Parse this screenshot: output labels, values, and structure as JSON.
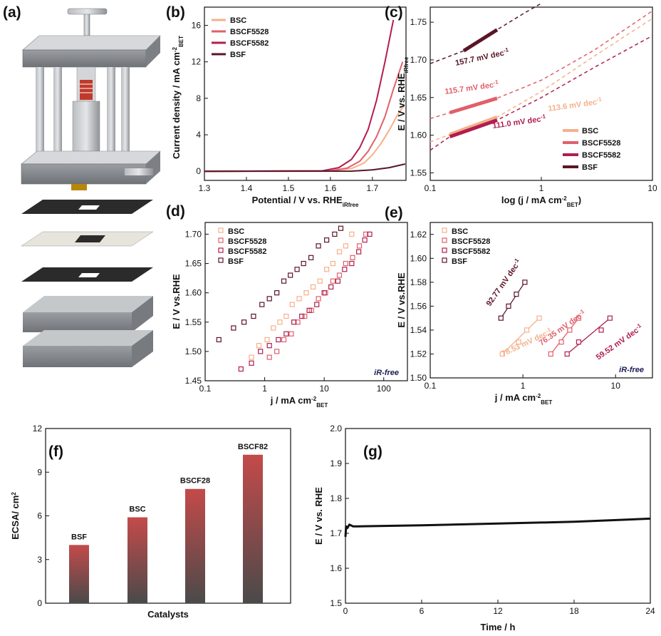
{
  "colors": {
    "BSC": "#f5b08a",
    "BSCF5528": "#e0606a",
    "BSCF5582": "#b01e4e",
    "BSF": "#5a1526"
  },
  "chart_data": [
    {
      "panel": "(a)",
      "type": "other",
      "content": "schematic of press-type electrochemical test cell (exploded view)"
    },
    {
      "panel": "(b)",
      "type": "line",
      "xlabel": "Potential / V vs. RHE",
      "xlabel_sub": "iRfree",
      "ylabel": "Current density / mA cm",
      "ylabel_sup": "-2",
      "ylabel_sub": "BET",
      "xlim": [
        1.3,
        1.78
      ],
      "ylim": [
        -1,
        18
      ],
      "xticks": [
        "1.3",
        "1.4",
        "1.5",
        "1.6",
        "1.7"
      ],
      "yticks": [
        "0",
        "4",
        "8",
        "12",
        "16"
      ],
      "legend": [
        "BSC",
        "BSCF5528",
        "BSCF5582",
        "BSF"
      ],
      "series": [
        {
          "name": "BSC",
          "x": [
            1.3,
            1.6,
            1.65,
            1.68,
            1.7,
            1.72,
            1.74,
            1.76,
            1.775
          ],
          "y": [
            0,
            0.05,
            0.3,
            0.9,
            1.8,
            3.0,
            4.5,
            6.2,
            7.2
          ]
        },
        {
          "name": "BSCF5528",
          "x": [
            1.3,
            1.6,
            1.64,
            1.67,
            1.69,
            1.71,
            1.73,
            1.75,
            1.772
          ],
          "y": [
            0,
            0.05,
            0.35,
            1.1,
            2.2,
            3.8,
            6.0,
            9.0,
            12.0
          ]
        },
        {
          "name": "BSCF5582",
          "x": [
            1.3,
            1.58,
            1.62,
            1.65,
            1.67,
            1.69,
            1.71,
            1.73,
            1.75
          ],
          "y": [
            0,
            0.05,
            0.4,
            1.3,
            2.6,
            4.6,
            7.8,
            12.0,
            16.6
          ]
        },
        {
          "name": "BSF",
          "x": [
            1.3,
            1.65,
            1.7,
            1.74,
            1.778
          ],
          "y": [
            0,
            0.02,
            0.15,
            0.4,
            0.8
          ]
        }
      ]
    },
    {
      "panel": "(c)",
      "type": "line",
      "xlabel": "log (j / mA cm",
      "xlabel_sup": "-2",
      "xlabel_sub": "BET",
      "xlabel_end": ")",
      "ylabel": "E / V vs. RHE",
      "ylabel_sub": "iRfree",
      "xscale": "log",
      "xlim": [
        0.1,
        10
      ],
      "ylim": [
        1.54,
        1.77
      ],
      "xticks": [
        "0.1",
        "1",
        "10"
      ],
      "yticks": [
        "1.55",
        "1.60",
        "1.65",
        "1.70",
        "1.75"
      ],
      "legend": [
        "BSC",
        "BSCF5528",
        "BSCF5582",
        "BSF"
      ],
      "series": [
        {
          "name": "BSC",
          "tafel": "113.6 mV dec",
          "x": [
            0.1,
            0.15,
            0.4,
            1,
            3,
            10
          ],
          "y": [
            1.591,
            1.601,
            1.624,
            1.658,
            1.705,
            1.755
          ]
        },
        {
          "name": "BSCF5528",
          "tafel": "115.7 mV dec",
          "x": [
            0.1,
            0.4,
            1,
            3,
            10
          ],
          "y": [
            1.622,
            1.649,
            1.673,
            1.713,
            1.765
          ]
        },
        {
          "name": "BSCF5582",
          "tafel": "111.0 mV dec",
          "x": [
            0.1,
            0.15,
            0.4,
            1,
            3,
            10
          ],
          "y": [
            1.58,
            1.598,
            1.62,
            1.65,
            1.69,
            1.732
          ]
        },
        {
          "name": "BSF",
          "tafel": "157.7 mV dec",
          "x": [
            0.1,
            0.2,
            0.4,
            0.7,
            1
          ],
          "y": [
            1.695,
            1.712,
            1.74,
            1.762,
            1.775
          ]
        }
      ],
      "annotations": [
        "157.7 mV dec",
        "115.7 mV dec",
        "113.6 mV dec",
        "111.0 mV dec"
      ],
      "annotation_sup": "-1"
    },
    {
      "panel": "(d)",
      "type": "scatter",
      "xlabel": "j / mA cm",
      "xlabel_sup": "-2",
      "xlabel_sub": "BET",
      "ylabel": "E / V vs.RHE",
      "xscale": "log",
      "xlim": [
        0.1,
        250
      ],
      "ylim": [
        1.45,
        1.72
      ],
      "xticks": [
        "0.1",
        "1",
        "10",
        "100"
      ],
      "yticks": [
        "1.45",
        "1.50",
        "1.55",
        "1.60",
        "1.65",
        "1.70"
      ],
      "legend": [
        "BSC",
        "BSCF5528",
        "BSCF5582",
        "BSF"
      ],
      "corner_text": "iR-free",
      "series": [
        {
          "name": "BSC",
          "x": [
            0.6,
            0.8,
            1.1,
            1.4,
            1.8,
            2.3,
            2.9,
            3.8,
            5,
            6.5,
            8.5,
            11,
            14,
            18,
            23,
            29
          ],
          "y": [
            1.49,
            1.51,
            1.52,
            1.54,
            1.55,
            1.56,
            1.58,
            1.59,
            1.6,
            1.61,
            1.62,
            1.64,
            1.65,
            1.67,
            1.68,
            1.7
          ]
        },
        {
          "name": "BSCF5528",
          "x": [
            1.2,
            1.6,
            2.1,
            2.8,
            3.6,
            4.7,
            6.1,
            8,
            10.5,
            14,
            18,
            23,
            30,
            39,
            50
          ],
          "y": [
            1.49,
            1.5,
            1.52,
            1.53,
            1.55,
            1.56,
            1.57,
            1.59,
            1.6,
            1.62,
            1.63,
            1.65,
            1.66,
            1.68,
            1.7
          ]
        },
        {
          "name": "BSCF5582",
          "x": [
            0.4,
            0.6,
            0.85,
            1.2,
            1.7,
            2.3,
            3.1,
            4.2,
            5.6,
            7.5,
            10,
            13,
            17,
            22,
            29,
            38,
            48,
            58
          ],
          "y": [
            1.47,
            1.48,
            1.5,
            1.51,
            1.52,
            1.53,
            1.55,
            1.56,
            1.57,
            1.58,
            1.6,
            1.61,
            1.62,
            1.64,
            1.65,
            1.67,
            1.69,
            1.7
          ]
        },
        {
          "name": "BSF",
          "x": [
            0.17,
            0.3,
            0.45,
            0.65,
            0.9,
            1.2,
            1.6,
            2.1,
            2.7,
            3.5,
            4.5,
            6,
            8,
            11,
            15,
            19
          ],
          "y": [
            1.52,
            1.54,
            1.55,
            1.56,
            1.58,
            1.59,
            1.6,
            1.62,
            1.63,
            1.64,
            1.65,
            1.66,
            1.68,
            1.69,
            1.7,
            1.71
          ]
        }
      ]
    },
    {
      "panel": "(e)",
      "type": "scatter",
      "xlabel": "j / mA cm",
      "xlabel_sup": "-2",
      "xlabel_sub": "BET",
      "ylabel": "E / V vs.RHE",
      "xscale": "log",
      "xlim": [
        0.1,
        25
      ],
      "ylim": [
        1.5,
        1.63
      ],
      "xticks": [
        "0.1",
        "1",
        "10"
      ],
      "yticks": [
        "1.50",
        "1.52",
        "1.54",
        "1.56",
        "1.58",
        "1.60",
        "1.62"
      ],
      "legend": [
        "BSC",
        "BSCF5528",
        "BSCF5582",
        "BSF"
      ],
      "corner_text": "iR-free",
      "series": [
        {
          "name": "BSC",
          "tafel": "78.53 mV dec",
          "x": [
            0.6,
            0.9,
            1.1,
            1.5
          ],
          "y": [
            1.52,
            1.53,
            1.54,
            1.55
          ]
        },
        {
          "name": "BSCF5528",
          "tafel": "76.35 mV dec",
          "x": [
            2.0,
            2.6,
            3.2,
            4.0
          ],
          "y": [
            1.52,
            1.53,
            1.54,
            1.55
          ]
        },
        {
          "name": "BSCF5582",
          "tafel": "59.52 mV dec",
          "x": [
            3.0,
            4.0,
            7.0,
            8.7
          ],
          "y": [
            1.52,
            1.53,
            1.54,
            1.55
          ]
        },
        {
          "name": "BSF",
          "tafel": "92.77 mV dec",
          "x": [
            0.58,
            0.7,
            0.85,
            1.05
          ],
          "y": [
            1.55,
            1.56,
            1.57,
            1.58
          ]
        }
      ],
      "annotations": [
        "92.77 mV dec",
        "78.53 mV dec",
        "76.35 mV dec",
        "59.52 mV dec"
      ],
      "annotation_sup": "-1"
    },
    {
      "panel": "(f)",
      "type": "bar",
      "xlabel": "Catalysts",
      "ylabel": "ECSA/ cm",
      "ylabel_sup": "2",
      "ylim": [
        0,
        12
      ],
      "yticks": [
        "0",
        "3",
        "6",
        "9",
        "12"
      ],
      "categories": [
        "BSF",
        "BSC",
        "BSCF28",
        "BSCF82"
      ],
      "values": [
        4.0,
        5.9,
        7.85,
        10.2
      ]
    },
    {
      "panel": "(g)",
      "type": "line",
      "xlabel": "Time / h",
      "ylabel": "E / V vs. RHE",
      "xlim": [
        0,
        24
      ],
      "ylim": [
        1.5,
        2.0
      ],
      "xticks": [
        "0",
        "6",
        "12",
        "18",
        "24"
      ],
      "yticks": [
        "1.5",
        "1.6",
        "1.7",
        "1.8",
        "1.9",
        "2.0"
      ],
      "series": [
        {
          "x": [
            0,
            0.05,
            0.15,
            0.3,
            0.6,
            1,
            6,
            12,
            18,
            24
          ],
          "y": [
            1.69,
            1.72,
            1.715,
            1.725,
            1.72,
            1.72,
            1.723,
            1.728,
            1.733,
            1.742
          ]
        }
      ]
    }
  ]
}
